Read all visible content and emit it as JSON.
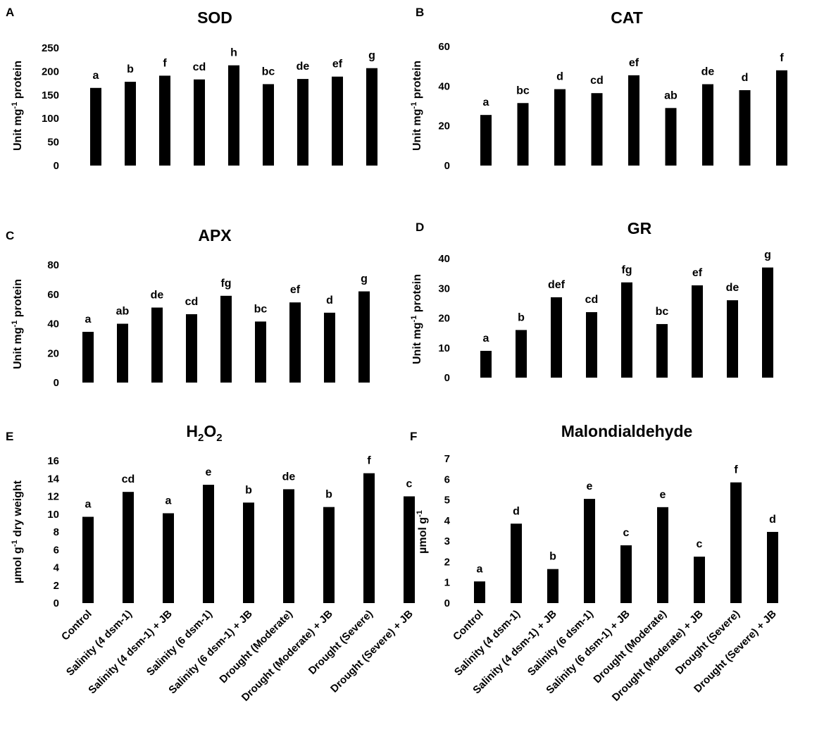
{
  "colors": {
    "bar": "#000000",
    "axis": "#bfbfbf",
    "text": "#000000"
  },
  "categories": [
    "Control",
    "Salinity (4 dsm-1)",
    "Salinity (4 dsm-1) + JB",
    "Salinity (6 dsm-1)",
    "Salinity (6 dsm-1) + JB",
    "Drought (Moderate)",
    "Drought (Moderate) + JB",
    "Drought (Severe)",
    "Drought (Severe) + JB"
  ],
  "chart_data": [
    {
      "id": "sod",
      "panel": "A",
      "type": "bar",
      "title": "SOD",
      "title_parts": [],
      "ylabel": "Unit mg",
      "ylabel_sup": "-1",
      "ylabel_tail": " protein",
      "ylim": [
        0,
        250
      ],
      "yticks": [
        0,
        50,
        100,
        150,
        200,
        250
      ],
      "values": [
        165,
        178,
        191,
        183,
        213,
        173,
        184,
        189,
        207
      ],
      "letters": [
        "a",
        "b",
        "f",
        "cd",
        "h",
        "bc",
        "de",
        "ef",
        "g"
      ]
    },
    {
      "id": "cat",
      "panel": "B",
      "type": "bar",
      "title": "CAT",
      "title_parts": [],
      "ylabel": "Unit mg",
      "ylabel_sup": "-1",
      "ylabel_tail": " protein",
      "ylim": [
        0,
        60
      ],
      "yticks": [
        0,
        20,
        40,
        60
      ],
      "values": [
        25.5,
        31.5,
        38.5,
        36.5,
        45.5,
        29,
        41,
        38,
        48
      ],
      "letters": [
        "a",
        "bc",
        "d",
        "cd",
        "ef",
        "ab",
        "de",
        "d",
        "f"
      ]
    },
    {
      "id": "apx",
      "panel": "C",
      "type": "bar",
      "title": "APX",
      "title_parts": [],
      "ylabel": "Unit mg",
      "ylabel_sup": "-1",
      "ylabel_tail": " protein",
      "ylim": [
        0,
        80
      ],
      "yticks": [
        0,
        20,
        40,
        60,
        80
      ],
      "values": [
        34.5,
        40,
        51,
        46.5,
        59,
        41.5,
        54.5,
        47.5,
        62
      ],
      "letters": [
        "a",
        "ab",
        "de",
        "cd",
        "fg",
        "bc",
        "ef",
        "d",
        "g"
      ]
    },
    {
      "id": "gr",
      "panel": "D",
      "type": "bar",
      "title": "GR",
      "title_parts": [],
      "ylabel": "Unit mg",
      "ylabel_sup": "-1",
      "ylabel_tail": " protein",
      "ylim": [
        0,
        40
      ],
      "yticks": [
        0,
        10,
        20,
        30,
        40
      ],
      "values": [
        9,
        16,
        27,
        22,
        32,
        18,
        31,
        26,
        37
      ],
      "letters": [
        "a",
        "b",
        "def",
        "cd",
        "fg",
        "bc",
        "ef",
        "de",
        "g"
      ]
    },
    {
      "id": "h2o2",
      "panel": "E",
      "type": "bar",
      "title": "H2O2",
      "title_parts": [
        "H",
        "2",
        "O",
        "2"
      ],
      "ylabel": "µmol g",
      "ylabel_sup": "-1",
      "ylabel_tail": " dry weight",
      "ylim": [
        0,
        16
      ],
      "yticks": [
        0,
        2,
        4,
        6,
        8,
        10,
        12,
        14,
        16
      ],
      "values": [
        9.7,
        12.5,
        10.1,
        13.3,
        11.3,
        12.8,
        10.8,
        14.6,
        12.0
      ],
      "letters": [
        "a",
        "cd",
        "a",
        "e",
        "b",
        "de",
        "b",
        "f",
        "c"
      ]
    },
    {
      "id": "mda",
      "panel": "F",
      "type": "bar",
      "title": "Malondialdehyde",
      "title_parts": [],
      "ylabel": "µmol g",
      "ylabel_sup": "-1",
      "ylabel_tail": "",
      "ylim": [
        0,
        7
      ],
      "yticks": [
        0,
        1,
        2,
        3,
        4,
        5,
        6,
        7
      ],
      "values": [
        1.05,
        3.85,
        1.65,
        5.05,
        2.8,
        4.65,
        2.25,
        5.85,
        3.45
      ],
      "letters": [
        "a",
        "d",
        "b",
        "e",
        "c",
        "e",
        "c",
        "f",
        "d"
      ]
    }
  ]
}
